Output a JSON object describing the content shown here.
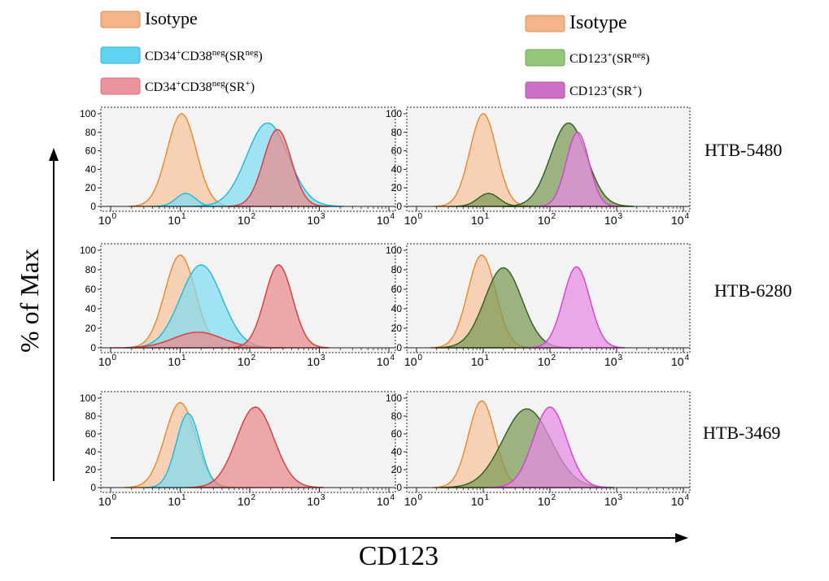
{
  "legends": {
    "left": [
      {
        "sup": "",
        "parts": [
          {
            "t": "Isotype"
          }
        ],
        "color": "#f3b48a",
        "edge": "#e0904f"
      },
      {
        "parts": [
          {
            "t": "CD34"
          },
          {
            "t": "+",
            "sup": true
          },
          {
            "t": "CD38"
          },
          {
            "t": "neg",
            "sup": true
          },
          {
            "t": "(SR"
          },
          {
            "t": "neg",
            "sup": true
          },
          {
            "t": ")"
          }
        ],
        "color": "#5fd3f0",
        "edge": "#2bb4d8"
      },
      {
        "parts": [
          {
            "t": "CD34"
          },
          {
            "t": "+",
            "sup": true
          },
          {
            "t": "CD38"
          },
          {
            "t": "neg",
            "sup": true
          },
          {
            "t": "(SR"
          },
          {
            "t": "+",
            "sup": true
          },
          {
            "t": ")"
          }
        ],
        "color": "#ec93a0",
        "edge": "#d8707f"
      }
    ],
    "right": [
      {
        "parts": [
          {
            "t": "Isotype"
          }
        ],
        "color": "#f3b48a",
        "edge": "#e0904f"
      },
      {
        "parts": [
          {
            "t": "CD123"
          },
          {
            "t": "+",
            "sup": true
          },
          {
            "t": "(SR"
          },
          {
            "t": "neg",
            "sup": true
          },
          {
            "t": ")"
          }
        ],
        "color": "#95c77a",
        "edge": "#6fa557"
      },
      {
        "parts": [
          {
            "t": "CD123"
          },
          {
            "t": "+",
            "sup": true
          },
          {
            "t": "(SR"
          },
          {
            "t": "+",
            "sup": true
          },
          {
            "t": ")"
          }
        ],
        "color": "#cc6fc6",
        "edge": "#b050ab"
      }
    ]
  },
  "row_labels": [
    "HTB-5480",
    "HTB-6280",
    "HTB-3469"
  ],
  "y_axis_label": "% of Max",
  "x_axis_label": "CD123",
  "colors": {
    "isotype": {
      "fill": "#f6c39c",
      "line": "#e8862a"
    },
    "cd34_neg": {
      "fill": "#7fdcf2",
      "line": "#1fb7d8"
    },
    "cd34_pos": {
      "fill": "#e98a8c",
      "line": "#d63a3c"
    },
    "cd123_neg": {
      "fill": "#7a9a55",
      "line": "#2e5c1a"
    },
    "cd123_pos": {
      "fill": "#e78ae4",
      "line": "#d43fd0"
    },
    "panel_bg": "#f3f3f3"
  },
  "chart_data": {
    "type": "area",
    "x_scale": "log",
    "xlim": [
      1,
      10000
    ],
    "ylim": [
      0,
      100
    ],
    "x_ticks": [
      {
        "base": "10",
        "exp": "0"
      },
      {
        "base": "10",
        "exp": "1"
      },
      {
        "base": "10",
        "exp": "2"
      },
      {
        "base": "10",
        "exp": "3"
      },
      {
        "base": "10",
        "exp": "4"
      }
    ],
    "y_ticks": [
      "0",
      "20",
      "40",
      "60",
      "80",
      "100"
    ],
    "panels": [
      {
        "row": 0,
        "col": 0,
        "series": [
          {
            "key": "isotype",
            "peak": 10.5,
            "height": 100,
            "width": 0.21
          },
          {
            "key": "cd34_neg",
            "peak": 12,
            "height": 14,
            "width": 0.14
          },
          {
            "key": "cd34_neg",
            "peak": 180,
            "height": 90,
            "width": 0.3
          },
          {
            "key": "cd34_pos",
            "peak": 250,
            "height": 83,
            "width": 0.2
          }
        ]
      },
      {
        "row": 0,
        "col": 1,
        "series": [
          {
            "key": "isotype",
            "peak": 10,
            "height": 100,
            "width": 0.2
          },
          {
            "key": "cd123_neg",
            "peak": 12,
            "height": 14,
            "width": 0.16
          },
          {
            "key": "cd123_neg",
            "peak": 190,
            "height": 90,
            "width": 0.27
          },
          {
            "key": "cd123_pos",
            "peak": 260,
            "height": 80,
            "width": 0.17
          }
        ]
      },
      {
        "row": 1,
        "col": 0,
        "series": [
          {
            "key": "isotype",
            "peak": 10,
            "height": 95,
            "width": 0.22
          },
          {
            "key": "cd34_neg",
            "peak": 20,
            "height": 85,
            "width": 0.3
          },
          {
            "key": "cd34_pos",
            "peak": 18,
            "height": 16,
            "width": 0.35
          },
          {
            "key": "cd34_pos",
            "peak": 260,
            "height": 85,
            "width": 0.2
          }
        ]
      },
      {
        "row": 1,
        "col": 1,
        "series": [
          {
            "key": "isotype",
            "peak": 9.5,
            "height": 95,
            "width": 0.21
          },
          {
            "key": "cd123_neg",
            "peak": 20,
            "height": 82,
            "width": 0.28
          },
          {
            "key": "cd123_pos",
            "peak": 250,
            "height": 83,
            "width": 0.2
          }
        ]
      },
      {
        "row": 2,
        "col": 0,
        "series": [
          {
            "key": "isotype",
            "peak": 10,
            "height": 95,
            "width": 0.22
          },
          {
            "key": "cd34_neg",
            "peak": 13,
            "height": 83,
            "width": 0.17
          },
          {
            "key": "cd34_pos",
            "peak": 120,
            "height": 90,
            "width": 0.27
          }
        ]
      },
      {
        "row": 2,
        "col": 1,
        "series": [
          {
            "key": "isotype",
            "peak": 9.5,
            "height": 97,
            "width": 0.2
          },
          {
            "key": "cd123_neg",
            "peak": 45,
            "height": 88,
            "width": 0.36
          },
          {
            "key": "cd123_pos",
            "peak": 100,
            "height": 90,
            "width": 0.25
          }
        ]
      }
    ]
  }
}
